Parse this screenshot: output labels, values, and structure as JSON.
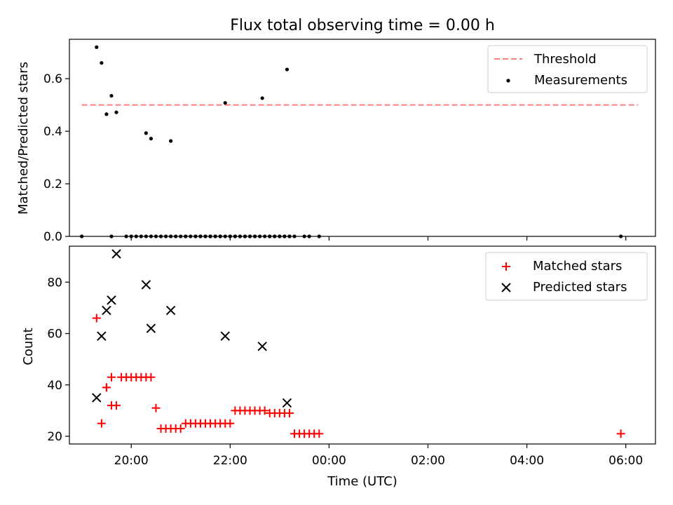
{
  "title": "Flux total observing time = 0.00 h",
  "chart_data": [
    {
      "type": "scatter",
      "ylabel": "Matched/Predicted stars",
      "xlim": [
        18.75,
        30.6
      ],
      "ylim": [
        0,
        0.75
      ],
      "yticks": [
        0.0,
        0.2,
        0.4,
        0.6
      ],
      "ytick_labels": [
        "0.0",
        "0.2",
        "0.4",
        "0.6"
      ],
      "legend": {
        "position": "top-right"
      },
      "threshold": {
        "name": "Threshold",
        "value": 0.5,
        "x_range": [
          19.0,
          30.25
        ],
        "color": "#ff7f7f"
      },
      "series": [
        {
          "name": "Measurements",
          "color": "#000000",
          "x": [
            19.3,
            19.4,
            19.5,
            19.6,
            19.7,
            20.3,
            20.4,
            20.8,
            21.9,
            22.65,
            23.15,
            19.0,
            19.6,
            19.9,
            20.0,
            20.1,
            20.2,
            20.3,
            20.4,
            20.5,
            20.6,
            20.7,
            20.8,
            20.9,
            21.0,
            21.1,
            21.3,
            21.4,
            21.5,
            21.6,
            21.7,
            21.8,
            21.9,
            22.0,
            22.1,
            22.2,
            22.3,
            22.4,
            22.5,
            22.6,
            22.7,
            22.8,
            22.9,
            23.0,
            23.1,
            23.2,
            23.3,
            23.5,
            23.6,
            23.8,
            29.9,
            21.1,
            21.2,
            21.3,
            21.4,
            21.5,
            21.6,
            21.7,
            21.8,
            22.0,
            22.1,
            22.2,
            22.3,
            22.4,
            22.5,
            22.8,
            22.9,
            23.0,
            23.1,
            23.2
          ],
          "y": [
            0.72,
            0.66,
            0.465,
            0.535,
            0.472,
            0.393,
            0.372,
            0.363,
            0.508,
            0.526,
            0.635,
            0,
            0,
            0,
            0,
            0,
            0,
            0,
            0,
            0,
            0,
            0,
            0,
            0,
            0,
            0,
            0,
            0,
            0,
            0,
            0,
            0,
            0,
            0,
            0,
            0,
            0,
            0,
            0,
            0,
            0,
            0,
            0,
            0,
            0,
            0,
            0,
            0,
            0,
            0,
            0,
            0,
            0,
            0,
            0,
            0,
            0,
            0,
            0,
            0,
            0,
            0,
            0,
            0,
            0,
            0,
            0,
            0,
            0,
            0
          ]
        }
      ]
    },
    {
      "type": "scatter",
      "xlabel": "Time (UTC)",
      "ylabel": "Count",
      "xlim": [
        18.75,
        30.6
      ],
      "ylim": [
        17,
        94
      ],
      "yticks": [
        20,
        40,
        60,
        80
      ],
      "ytick_labels": [
        "20",
        "40",
        "60",
        "80"
      ],
      "xticks": [
        20,
        22,
        24,
        26,
        28,
        30
      ],
      "xtick_labels": [
        "20:00",
        "22:00",
        "00:00",
        "02:00",
        "04:00",
        "06:00"
      ],
      "legend": {
        "position": "top-right"
      },
      "series": [
        {
          "name": "Matched stars",
          "marker": "+",
          "color": "#ff0000",
          "x": [
            19.3,
            19.4,
            19.5,
            19.6,
            19.7,
            19.5,
            19.6,
            19.8,
            19.9,
            20.0,
            20.1,
            20.2,
            20.3,
            20.4,
            20.5,
            20.6,
            20.7,
            20.8,
            20.9,
            21.0,
            21.1,
            21.2,
            21.3,
            21.4,
            21.5,
            21.6,
            21.7,
            21.8,
            21.9,
            22.0,
            22.1,
            22.2,
            22.3,
            22.4,
            22.5,
            22.6,
            22.7,
            22.8,
            22.9,
            23.0,
            23.1,
            23.2,
            23.3,
            23.4,
            23.5,
            23.6,
            23.7,
            23.8,
            29.9
          ],
          "y": [
            66,
            25,
            39,
            32,
            32,
            39,
            43,
            43,
            43,
            43,
            43,
            43,
            43,
            43,
            31,
            23,
            23,
            23,
            23,
            23,
            25,
            25,
            25,
            25,
            25,
            25,
            25,
            25,
            25,
            25,
            30,
            30,
            30,
            30,
            30,
            30,
            30,
            29,
            29,
            29,
            29,
            29,
            21,
            21,
            21,
            21,
            21,
            21,
            21
          ]
        },
        {
          "name": "Predicted stars",
          "marker": "x",
          "color": "#000000",
          "x": [
            19.3,
            19.4,
            19.5,
            19.6,
            19.7,
            20.3,
            20.4,
            20.8,
            21.9,
            22.65,
            23.15
          ],
          "y": [
            35,
            59,
            69,
            73,
            91,
            79,
            62,
            69,
            59,
            55,
            33
          ]
        }
      ]
    }
  ]
}
